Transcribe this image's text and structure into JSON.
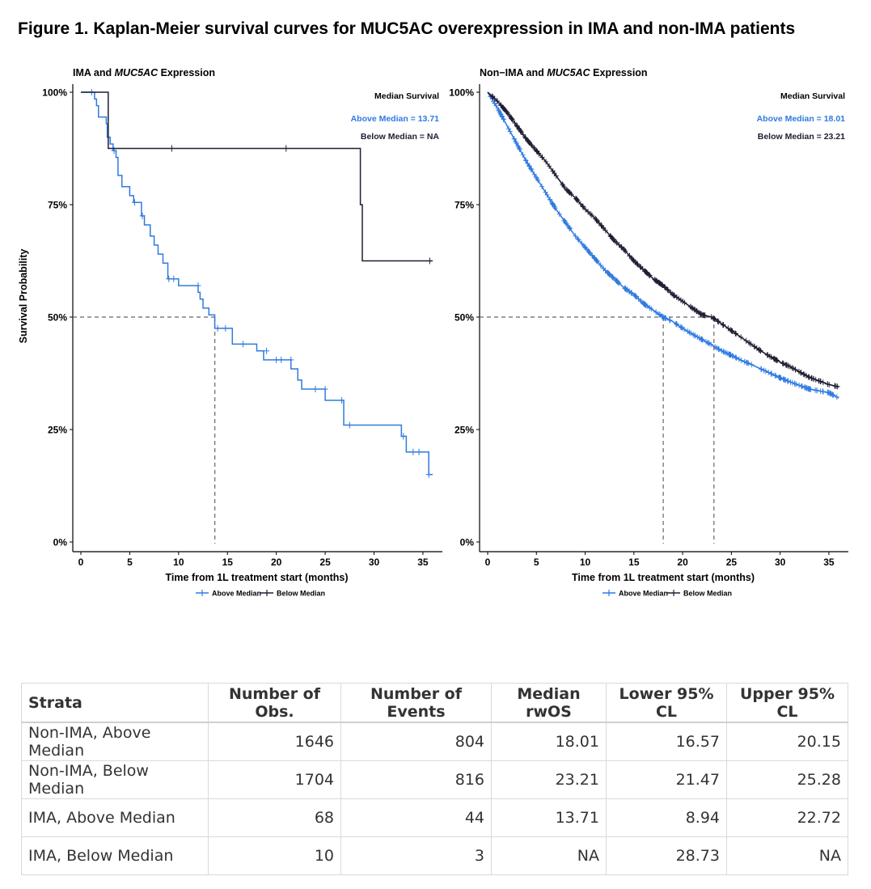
{
  "figure_title": "Figure 1. Kaplan-Meier survival curves for MUC5AC overexpression in IMA and non-IMA patients",
  "colors": {
    "above": "#2f7ae0",
    "below": "#1f1d33",
    "median_line": "#666666",
    "axis": "#000000"
  },
  "chart_data": [
    {
      "type": "line",
      "title_prefix": "IMA and",
      "title_gene": "MUC5AC",
      "title_suffix": "Expression",
      "xlabel": "Time from 1L treatment start (months)",
      "ylabel": "Survival Probability",
      "xlim": [
        0,
        36
      ],
      "ylim": [
        0,
        1
      ],
      "xticks": [
        0,
        5,
        10,
        15,
        20,
        25,
        30,
        35
      ],
      "yticks": [
        0,
        0.25,
        0.5,
        0.75,
        1
      ],
      "ytick_labels": [
        "0%",
        "25%",
        "50%",
        "75%",
        "100%"
      ],
      "annotation_title": "Median Survival",
      "annotation_above": "Above Median = 13.71",
      "annotation_below": "Below Median = NA",
      "legend": [
        "Above Median",
        "Below Median"
      ],
      "legend_position": "bottom",
      "median_lines": [
        13.71
      ],
      "series": [
        {
          "name": "Above Median",
          "step": [
            [
              0,
              1
            ],
            [
              1.3,
              1
            ],
            [
              1.4,
              0.985
            ],
            [
              1.6,
              0.97
            ],
            [
              1.8,
              0.945
            ],
            [
              2.6,
              0.93
            ],
            [
              2.7,
              0.9
            ],
            [
              3,
              0.885
            ],
            [
              3.3,
              0.87
            ],
            [
              3.6,
              0.855
            ],
            [
              3.8,
              0.815
            ],
            [
              4.2,
              0.79
            ],
            [
              5,
              0.77
            ],
            [
              5.4,
              0.755
            ],
            [
              6.2,
              0.725
            ],
            [
              6.5,
              0.705
            ],
            [
              7.1,
              0.68
            ],
            [
              7.5,
              0.66
            ],
            [
              7.9,
              0.64
            ],
            [
              8.4,
              0.62
            ],
            [
              8.9,
              0.585
            ],
            [
              10,
              0.57
            ],
            [
              12,
              0.555
            ],
            [
              12.2,
              0.54
            ],
            [
              12.5,
              0.52
            ],
            [
              13.1,
              0.505
            ],
            [
              13.7,
              0.475
            ],
            [
              15.5,
              0.44
            ],
            [
              18,
              0.425
            ],
            [
              18.7,
              0.405
            ],
            [
              21.5,
              0.385
            ],
            [
              22.2,
              0.36
            ],
            [
              22.6,
              0.34
            ],
            [
              25,
              0.315
            ],
            [
              26.9,
              0.26
            ],
            [
              32.8,
              0.235
            ],
            [
              33.3,
              0.2
            ],
            [
              35.6,
              0.15
            ],
            [
              36,
              0.15
            ]
          ],
          "censor": [
            [
              1.1,
              1
            ],
            [
              3.4,
              0.87
            ],
            [
              5.5,
              0.755
            ],
            [
              6.3,
              0.725
            ],
            [
              9,
              0.585
            ],
            [
              9.5,
              0.585
            ],
            [
              12,
              0.57
            ],
            [
              14,
              0.475
            ],
            [
              14.8,
              0.475
            ],
            [
              16.6,
              0.44
            ],
            [
              19,
              0.425
            ],
            [
              20,
              0.405
            ],
            [
              20.5,
              0.405
            ],
            [
              21.5,
              0.405
            ],
            [
              24,
              0.34
            ],
            [
              25,
              0.34
            ],
            [
              26.7,
              0.315
            ],
            [
              27.5,
              0.26
            ],
            [
              33,
              0.235
            ],
            [
              34,
              0.2
            ],
            [
              34.6,
              0.2
            ],
            [
              35.6,
              0.15
            ]
          ]
        },
        {
          "name": "Below Median",
          "step": [
            [
              0,
              1
            ],
            [
              2.6,
              1
            ],
            [
              2.8,
              0.875
            ],
            [
              28.2,
              0.875
            ],
            [
              28.6,
              0.75
            ],
            [
              28.8,
              0.625
            ],
            [
              36,
              0.625
            ]
          ],
          "censor": [
            [
              9.3,
              0.875
            ],
            [
              21,
              0.875
            ],
            [
              35.7,
              0.625
            ]
          ]
        }
      ]
    },
    {
      "type": "line",
      "title_prefix": "Non−IMA and",
      "title_gene": "MUC5AC",
      "title_suffix": "Expression",
      "xlabel": "Time from 1L treatment start (months)",
      "ylabel": "",
      "xlim": [
        0,
        36
      ],
      "ylim": [
        0,
        1
      ],
      "xticks": [
        0,
        5,
        10,
        15,
        20,
        25,
        30,
        35
      ],
      "yticks": [
        0,
        0.25,
        0.5,
        0.75,
        1
      ],
      "ytick_labels": [
        "0%",
        "25%",
        "50%",
        "75%",
        "100%"
      ],
      "annotation_title": "Median Survival",
      "annotation_above": "Above Median = 18.01",
      "annotation_below": "Below Median = 23.21",
      "legend": [
        "Above Median",
        "Below Median"
      ],
      "legend_position": "bottom",
      "median_lines": [
        18.01,
        23.21
      ],
      "series": [
        {
          "name": "Above Median",
          "curve": [
            [
              0,
              1
            ],
            [
              1,
              0.965
            ],
            [
              2,
              0.925
            ],
            [
              3,
              0.885
            ],
            [
              4,
              0.845
            ],
            [
              5,
              0.81
            ],
            [
              6,
              0.775
            ],
            [
              7,
              0.74
            ],
            [
              8,
              0.71
            ],
            [
              9,
              0.68
            ],
            [
              10,
              0.655
            ],
            [
              11,
              0.63
            ],
            [
              12,
              0.605
            ],
            [
              13,
              0.585
            ],
            [
              14,
              0.565
            ],
            [
              15,
              0.55
            ],
            [
              16,
              0.53
            ],
            [
              17,
              0.515
            ],
            [
              18,
              0.5
            ],
            [
              19,
              0.49
            ],
            [
              20,
              0.475
            ],
            [
              21,
              0.462
            ],
            [
              22,
              0.45
            ],
            [
              23,
              0.438
            ],
            [
              24,
              0.425
            ],
            [
              25,
              0.415
            ],
            [
              26,
              0.404
            ],
            [
              27,
              0.395
            ],
            [
              28,
              0.385
            ],
            [
              29,
              0.375
            ],
            [
              30,
              0.365
            ],
            [
              31,
              0.356
            ],
            [
              32,
              0.348
            ],
            [
              33,
              0.34
            ],
            [
              34,
              0.336
            ],
            [
              35,
              0.332
            ],
            [
              36,
              0.32
            ]
          ],
          "dense_censor": true
        },
        {
          "name": "Below Median",
          "curve": [
            [
              0,
              1
            ],
            [
              1,
              0.98
            ],
            [
              2,
              0.955
            ],
            [
              3,
              0.925
            ],
            [
              4,
              0.895
            ],
            [
              5,
              0.87
            ],
            [
              6,
              0.845
            ],
            [
              7,
              0.815
            ],
            [
              8,
              0.785
            ],
            [
              9,
              0.765
            ],
            [
              10,
              0.74
            ],
            [
              11,
              0.72
            ],
            [
              12,
              0.695
            ],
            [
              13,
              0.67
            ],
            [
              14,
              0.65
            ],
            [
              15,
              0.625
            ],
            [
              16,
              0.605
            ],
            [
              17,
              0.585
            ],
            [
              18,
              0.57
            ],
            [
              19,
              0.55
            ],
            [
              20,
              0.535
            ],
            [
              21,
              0.52
            ],
            [
              22,
              0.505
            ],
            [
              23,
              0.5
            ],
            [
              24,
              0.485
            ],
            [
              25,
              0.47
            ],
            [
              26,
              0.455
            ],
            [
              27,
              0.44
            ],
            [
              28,
              0.425
            ],
            [
              29,
              0.412
            ],
            [
              30,
              0.4
            ],
            [
              31,
              0.39
            ],
            [
              32,
              0.378
            ],
            [
              33,
              0.366
            ],
            [
              34,
              0.358
            ],
            [
              35,
              0.35
            ],
            [
              36,
              0.345
            ]
          ],
          "dense_censor": true
        }
      ]
    }
  ],
  "table": {
    "headers": [
      "Strata",
      "Number of Obs.",
      "Number of Events",
      "Median rwOS",
      "Lower 95% CL",
      "Upper 95% CL"
    ],
    "rows": [
      [
        "Non-IMA, Above Median",
        "1646",
        "804",
        "18.01",
        "16.57",
        "20.15"
      ],
      [
        "Non-IMA, Below Median",
        "1704",
        "816",
        "23.21",
        "21.47",
        "25.28"
      ],
      [
        "IMA, Above Median",
        "68",
        "44",
        "13.71",
        "8.94",
        "22.72"
      ],
      [
        "IMA, Below Median",
        "10",
        "3",
        "NA",
        "28.73",
        "NA"
      ]
    ]
  }
}
